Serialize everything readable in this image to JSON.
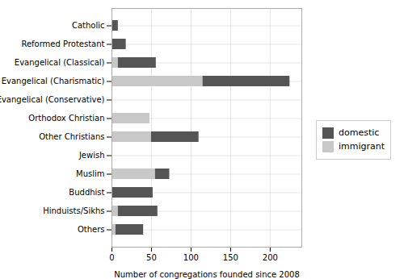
{
  "chart_data": {
    "type": "bar",
    "orientation": "horizontal",
    "stacked": true,
    "categories": [
      "Catholic",
      "Reformed Protestant",
      "Evangelical (Classical)",
      "Evangelical (Charismatic)",
      "Evangelical (Conservative)",
      "Orthodox Christian",
      "Other Christians",
      "Jewish",
      "Muslim",
      "Buddhist",
      "Hinduists/Sikhs",
      "Others"
    ],
    "series": [
      {
        "name": "immigrant",
        "color": "#c8c8c8",
        "values": [
          0,
          0,
          8,
          115,
          0,
          48,
          50,
          0,
          55,
          0,
          8,
          5
        ]
      },
      {
        "name": "domestic",
        "color": "#555555",
        "values": [
          8,
          18,
          48,
          110,
          1,
          0,
          60,
          1,
          18,
          52,
          50,
          35
        ]
      }
    ],
    "xlabel": "Number of congregations founded since 2008",
    "xlim": [
      0,
      240
    ],
    "xticks": [
      0,
      50,
      100,
      150,
      200
    ],
    "grid": true,
    "legend": "right"
  }
}
